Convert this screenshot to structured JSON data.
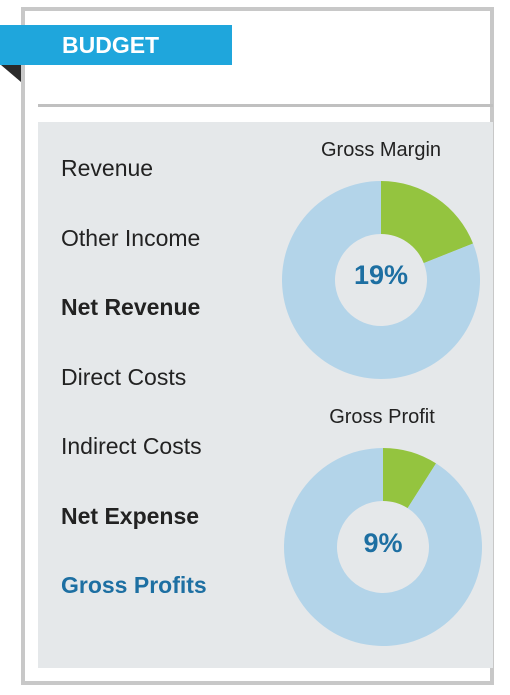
{
  "header": {
    "title": "BUDGET"
  },
  "line_items": [
    {
      "label": "Revenue",
      "style": "normal"
    },
    {
      "label": "Other Income",
      "style": "normal"
    },
    {
      "label": "Net Revenue",
      "style": "bold"
    },
    {
      "label": "Direct Costs",
      "style": "normal"
    },
    {
      "label": "Indirect Costs",
      "style": "normal"
    },
    {
      "label": "Net Expense",
      "style": "bold"
    },
    {
      "label": "Gross Profits",
      "style": "accent"
    }
  ],
  "colors": {
    "ribbon": "#1fa6dc",
    "donut_fill": "#94c43f",
    "donut_rest": "#b3d4e9",
    "percent_text": "#1d6fa2",
    "panel": "#e5e8ea"
  },
  "chart_data": [
    {
      "type": "pie",
      "title": "Gross Margin",
      "values": [
        19,
        81
      ],
      "label": "19%"
    },
    {
      "type": "pie",
      "title": "Gross Profit",
      "values": [
        9,
        91
      ],
      "label": "9%"
    }
  ]
}
